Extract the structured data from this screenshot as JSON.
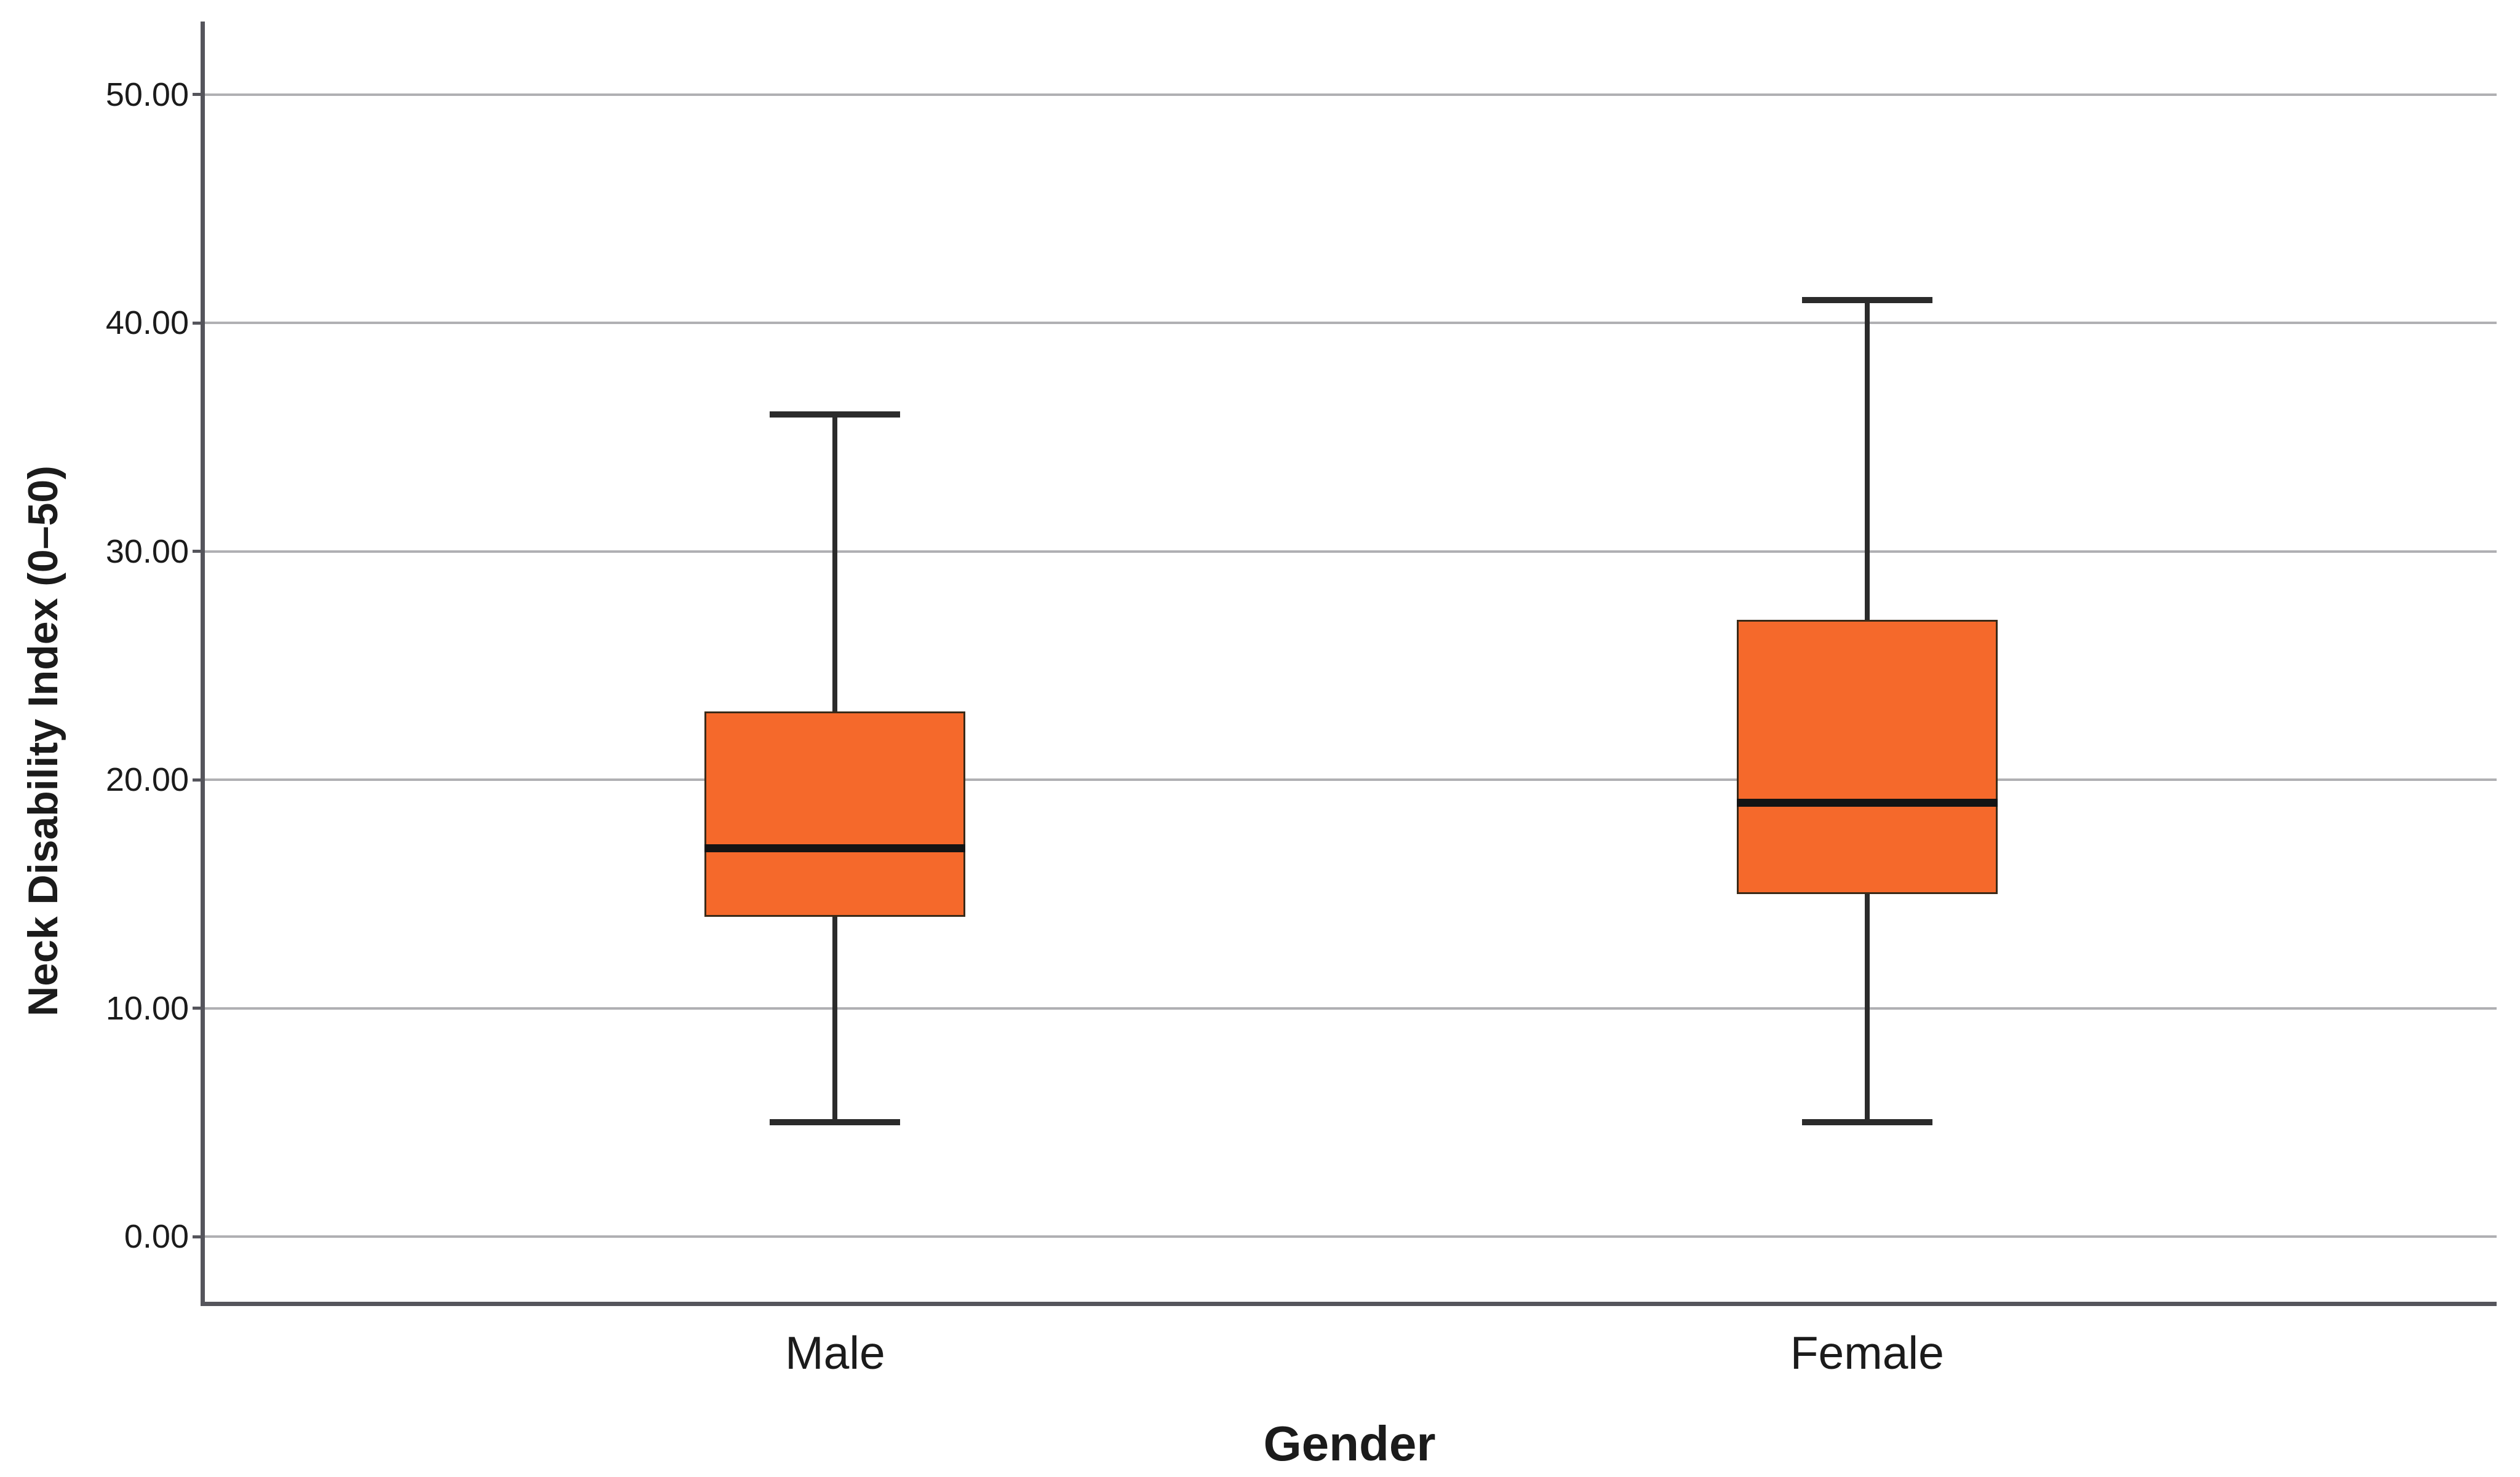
{
  "chart_data": {
    "type": "box",
    "title": "",
    "xlabel": "Gender",
    "ylabel": "Neck Disability Index (0–50)",
    "categories": [
      "Male",
      "Female"
    ],
    "y_ticks": [
      "0.00",
      "10.00",
      "20.00",
      "30.00",
      "40.00",
      "50.00"
    ],
    "y_tick_values": [
      0,
      10,
      20,
      30,
      40,
      50
    ],
    "ylim": [
      -2.85,
      53.2
    ],
    "grid": true,
    "legend": "none",
    "series": [
      {
        "name": "Male",
        "min": 5,
        "q1": 14,
        "median": 17,
        "q3": 23,
        "max": 36
      },
      {
        "name": "Female",
        "min": 5,
        "q1": 15,
        "median": 19,
        "q3": 27,
        "max": 41
      }
    ],
    "colors": {
      "box_fill": "#F5692B",
      "box_border": "#3A2A18",
      "median": "#141414",
      "whisker": "#2B2B2B",
      "gridline": "#B0B0B3",
      "axis": "#55555C",
      "text": "#1B1B1B",
      "background": "#FFFFFF"
    }
  }
}
